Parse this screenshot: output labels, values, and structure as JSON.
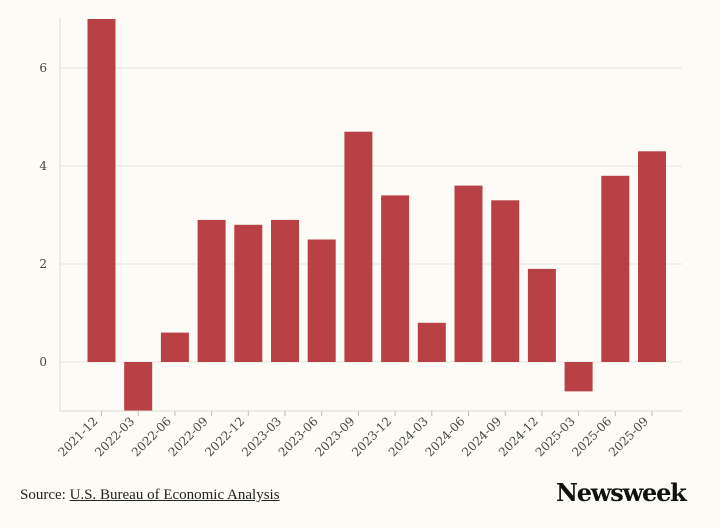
{
  "chart_data": {
    "type": "bar",
    "categories": [
      "2021-12",
      "2022-03",
      "2022-06",
      "2022-09",
      "2022-12",
      "2023-03",
      "2023-06",
      "2023-09",
      "2023-12",
      "2024-03",
      "2024-06",
      "2024-09",
      "2024-12",
      "2025-03",
      "2025-06",
      "2025-09"
    ],
    "values": [
      7.0,
      -1.0,
      0.6,
      2.9,
      2.8,
      2.9,
      2.5,
      4.7,
      3.4,
      0.8,
      3.6,
      3.3,
      1.9,
      -0.6,
      3.8,
      4.3
    ],
    "y_ticks": [
      0,
      2,
      4,
      6
    ],
    "ylim": [
      -1,
      7
    ],
    "grid": true,
    "bar_color": "#b5363b"
  },
  "footer": {
    "source_prefix": "Source:",
    "source_link": "U.S. Bureau of Economic Analysis",
    "brand": "Newsweek"
  }
}
